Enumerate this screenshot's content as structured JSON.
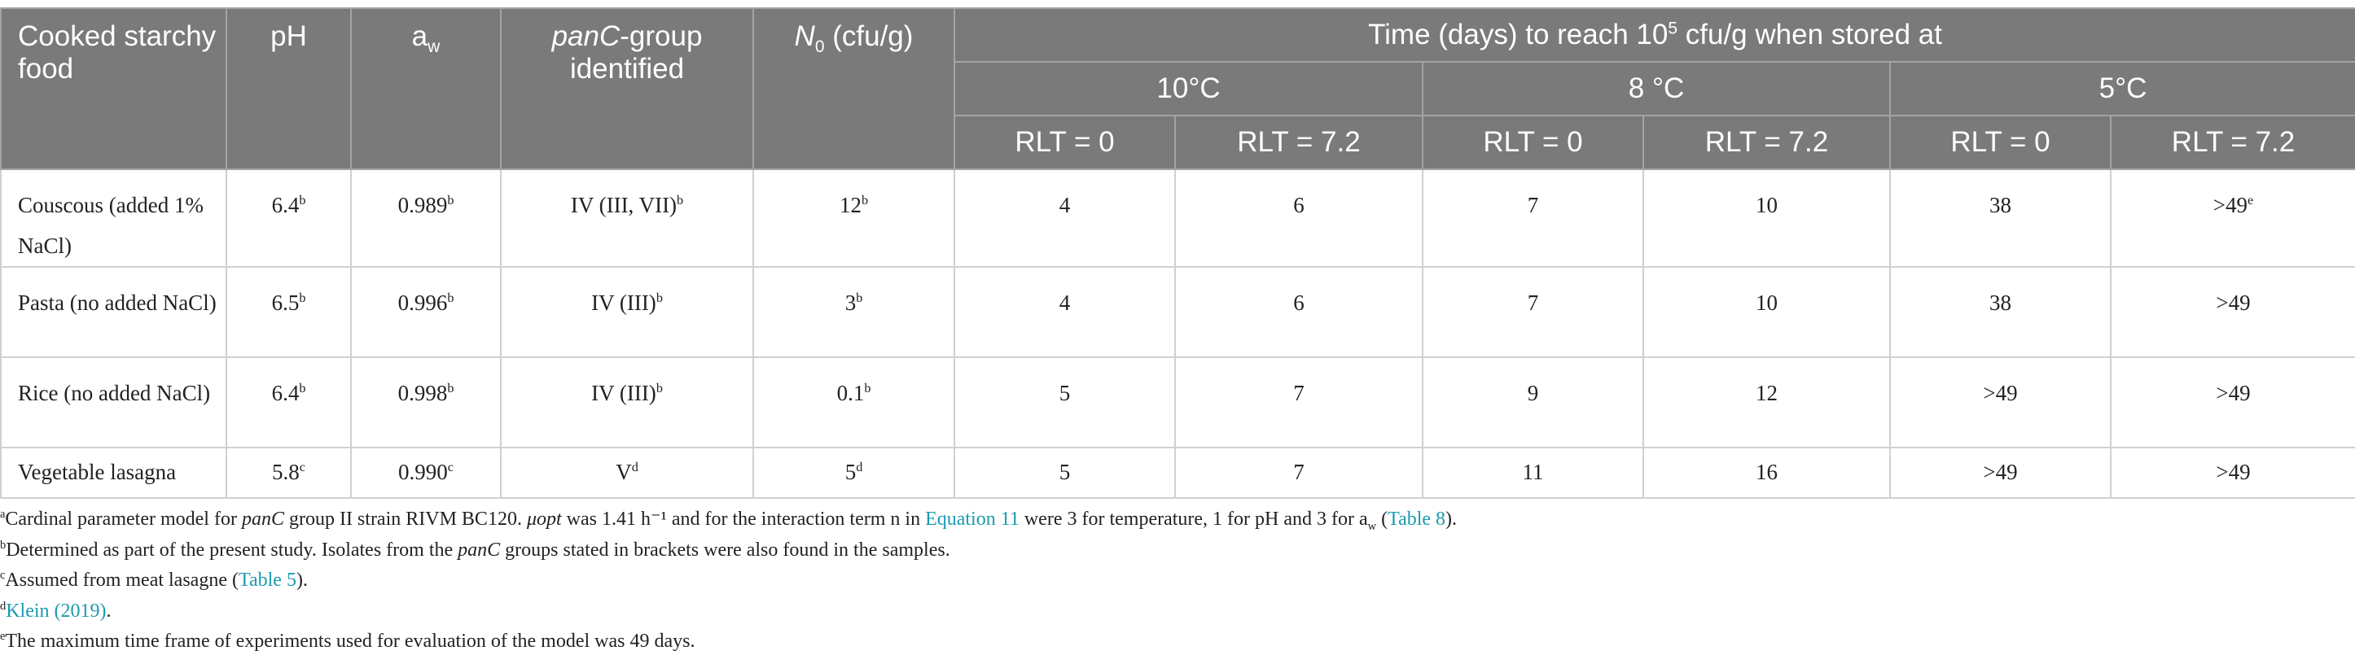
{
  "table": {
    "header": {
      "columns": [
        [
          {
            "text": "Cooked starchy food"
          }
        ],
        [
          {
            "text": "pH"
          }
        ],
        [
          {
            "text": "a"
          },
          {
            "sub": "w"
          }
        ],
        [
          {
            "italic": "panC"
          },
          {
            "text": "-group identified"
          }
        ],
        [
          {
            "italic": "N"
          },
          {
            "sub": "0"
          },
          {
            "text": " (cfu/g)"
          }
        ]
      ],
      "group": [
        {
          "text": "Time (days) to reach 10"
        },
        {
          "sup": "5"
        },
        {
          "text": " cfu/g when stored at"
        }
      ],
      "temperatures": [
        "10°C",
        "8 °C",
        "5°C"
      ],
      "rlt": [
        "RLT = 0",
        "RLT = 7.2",
        "RLT = 0",
        "RLT = 7.2",
        "RLT = 0",
        "RLT = 7.2"
      ]
    },
    "rows": [
      [
        [
          {
            "text": "Couscous (added 1% NaCl)"
          }
        ],
        [
          {
            "text": "6.4"
          },
          {
            "sup": "b"
          }
        ],
        [
          {
            "text": "0.989"
          },
          {
            "sup": "b"
          }
        ],
        [
          {
            "text": "IV (III, VII)"
          },
          {
            "sup": "b"
          }
        ],
        [
          {
            "text": "12"
          },
          {
            "sup": "b"
          }
        ],
        [
          {
            "text": "4"
          }
        ],
        [
          {
            "text": "6"
          }
        ],
        [
          {
            "text": "7"
          }
        ],
        [
          {
            "text": "10"
          }
        ],
        [
          {
            "text": "38"
          }
        ],
        [
          {
            "text": ">49"
          },
          {
            "sup": "e"
          }
        ]
      ],
      [
        [
          {
            "text": "Pasta (no added NaCl)"
          }
        ],
        [
          {
            "text": "6.5"
          },
          {
            "sup": "b"
          }
        ],
        [
          {
            "text": "0.996"
          },
          {
            "sup": "b"
          }
        ],
        [
          {
            "text": "IV (III)"
          },
          {
            "sup": "b"
          }
        ],
        [
          {
            "text": "3"
          },
          {
            "sup": "b"
          }
        ],
        [
          {
            "text": "4"
          }
        ],
        [
          {
            "text": "6"
          }
        ],
        [
          {
            "text": "7"
          }
        ],
        [
          {
            "text": "10"
          }
        ],
        [
          {
            "text": "38"
          }
        ],
        [
          {
            "text": ">49"
          }
        ]
      ],
      [
        [
          {
            "text": "Rice (no added NaCl)"
          }
        ],
        [
          {
            "text": "6.4"
          },
          {
            "sup": "b"
          }
        ],
        [
          {
            "text": "0.998"
          },
          {
            "sup": "b"
          }
        ],
        [
          {
            "text": "IV (III)"
          },
          {
            "sup": "b"
          }
        ],
        [
          {
            "text": "0.1"
          },
          {
            "sup": "b"
          }
        ],
        [
          {
            "text": "5"
          }
        ],
        [
          {
            "text": "7"
          }
        ],
        [
          {
            "text": "9"
          }
        ],
        [
          {
            "text": "12"
          }
        ],
        [
          {
            "text": ">49"
          }
        ],
        [
          {
            "text": ">49"
          }
        ]
      ],
      [
        [
          {
            "text": "Vegetable lasagna"
          }
        ],
        [
          {
            "text": "5.8"
          },
          {
            "sup": "c"
          }
        ],
        [
          {
            "text": "0.990"
          },
          {
            "sup": "c"
          }
        ],
        [
          {
            "text": "V"
          },
          {
            "sup": "d"
          }
        ],
        [
          {
            "text": "5"
          },
          {
            "sup": "d"
          }
        ],
        [
          {
            "text": "5"
          }
        ],
        [
          {
            "text": "7"
          }
        ],
        [
          {
            "text": "11"
          }
        ],
        [
          {
            "text": "16"
          }
        ],
        [
          {
            "text": ">49"
          }
        ],
        [
          {
            "text": ">49"
          }
        ]
      ]
    ]
  },
  "footnotes": [
    [
      {
        "sup": "a"
      },
      {
        "text": "Cardinal parameter model for "
      },
      {
        "italic": "panC"
      },
      {
        "text": " group II strain RIVM BC120. "
      },
      {
        "italic": "μopt"
      },
      {
        "text": " was 1.41 h⁻¹ and for the interaction term n in "
      },
      {
        "link": "Equation 11"
      },
      {
        "text": " were 3 for temperature, 1 for pH and 3 for a"
      },
      {
        "sub": "w"
      },
      {
        "text": " ("
      },
      {
        "link": "Table 8"
      },
      {
        "text": ")."
      }
    ],
    [
      {
        "sup": "b"
      },
      {
        "text": "Determined as part of the present study. Isolates from the "
      },
      {
        "italic": "panC"
      },
      {
        "text": " groups stated in brackets were also found in the samples."
      }
    ],
    [
      {
        "sup": "c"
      },
      {
        "text": "Assumed from meat lasagne ("
      },
      {
        "link": "Table 5"
      },
      {
        "text": ")."
      }
    ],
    [
      {
        "sup": "d"
      },
      {
        "link": "Klein (2019)"
      },
      {
        "text": "."
      }
    ],
    [
      {
        "sup": "e"
      },
      {
        "text": "The maximum time frame of experiments used for evaluation of the model was 49 days."
      }
    ]
  ]
}
